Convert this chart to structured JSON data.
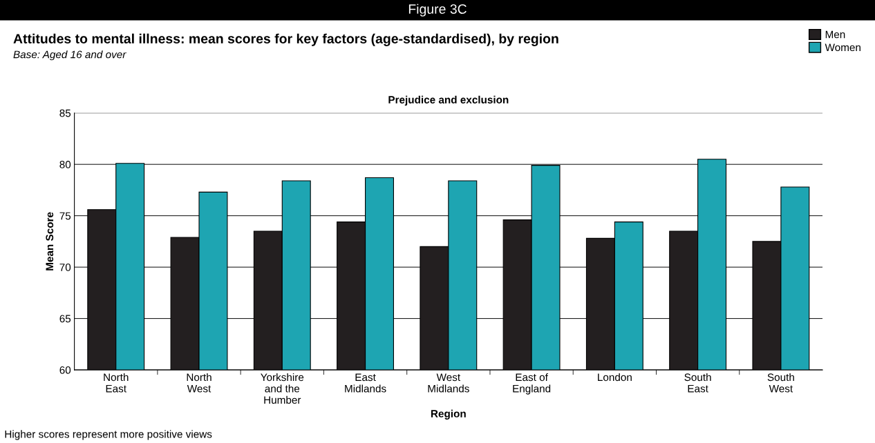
{
  "chart_data": {
    "type": "bar",
    "title": "Attitudes to mental illness: mean scores for key factors (age-standardised), by region",
    "subtitle": "Base: Aged 16 and over",
    "annotations": [
      "Figure 3C",
      "Prejudice and exclusion",
      "Higher scores represent more positive views"
    ],
    "xlabel": "Region",
    "ylabel": "Mean Score",
    "categories": [
      "North\nEast",
      "North\nWest",
      "Yorkshire\nand the\nHumber",
      "East\nMidlands",
      "West\nMidlands",
      "East of\nEngland",
      "London",
      "South\nEast",
      "South\nWest"
    ],
    "series": [
      {
        "name": "Men",
        "color": "#231f20",
        "values": [
          75.6,
          72.9,
          73.5,
          74.4,
          72.0,
          74.6,
          72.8,
          73.5,
          72.5
        ]
      },
      {
        "name": "Women",
        "color": "#1ea5b2",
        "values": [
          80.1,
          77.3,
          78.4,
          78.7,
          78.4,
          79.9,
          74.4,
          80.5,
          77.8
        ]
      }
    ],
    "ylim": [
      60,
      85
    ],
    "yticks": [
      60,
      65,
      70,
      75,
      80,
      85
    ],
    "grid": "y",
    "legend": "top right"
  }
}
